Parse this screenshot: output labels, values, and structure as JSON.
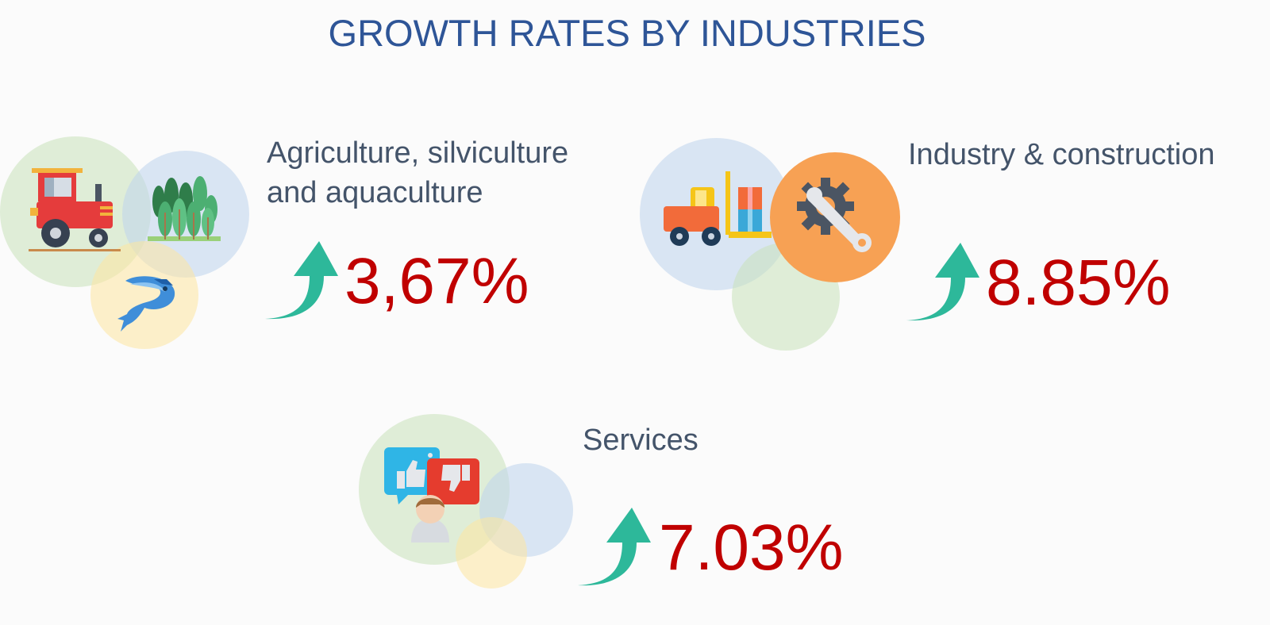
{
  "title": "GROWTH RATES BY INDUSTRIES",
  "colors": {
    "title": "#2e5597",
    "label": "#44546a",
    "percent": "#c00000",
    "arrow": "#2db89a"
  },
  "industries": [
    {
      "label_line1": "Agriculture, silviculture",
      "label_line2": "and aquaculture",
      "growth": "3,67%",
      "icons": [
        "tractor-icon",
        "forest-icon",
        "fish-icon",
        "growth-arrow-icon"
      ]
    },
    {
      "label_line1": "Industry & construction",
      "growth": "8.85%",
      "icons": [
        "forklift-icon",
        "wrench-gear-icon",
        "growth-arrow-icon"
      ]
    },
    {
      "label_line1": "Services",
      "growth": "7.03%",
      "icons": [
        "feedback-person-icon",
        "growth-arrow-icon"
      ]
    }
  ]
}
